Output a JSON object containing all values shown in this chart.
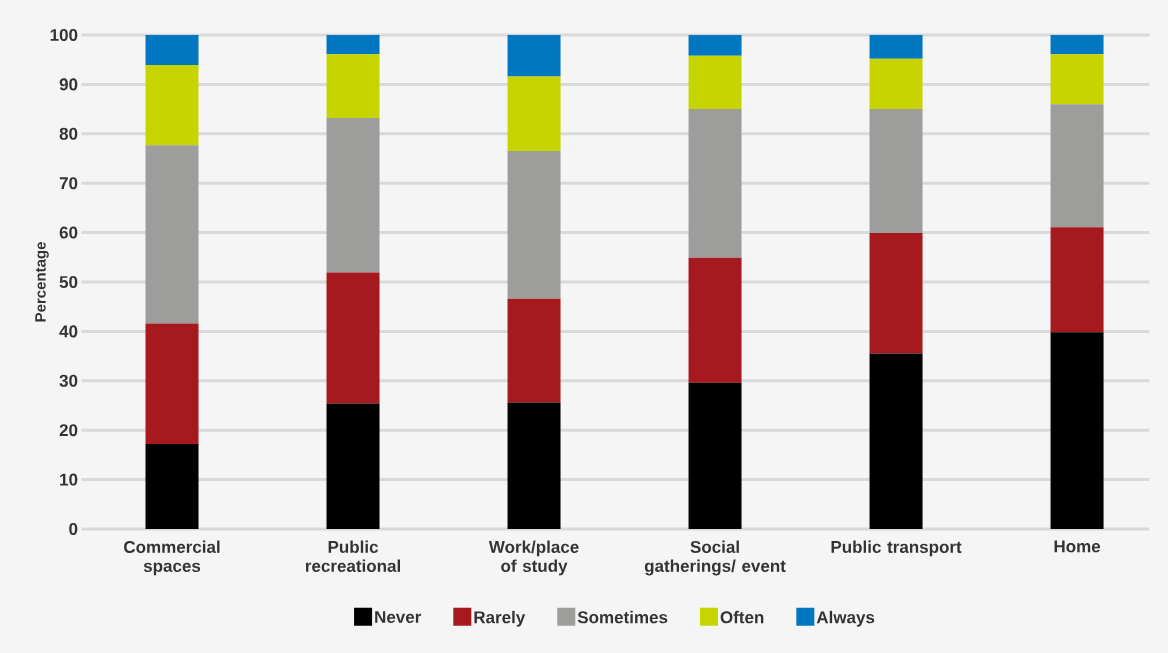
{
  "chart_data": {
    "type": "bar",
    "stacked": true,
    "ylabel": "Percentage",
    "categories": [
      "Commercial spaces",
      "Public recreational",
      "Work/place of study",
      "Social gatherings/ event",
      "Public transport",
      "Home"
    ],
    "series": [
      {
        "name": "Never",
        "color": "#000000",
        "values": [
          17.2,
          25.4,
          25.6,
          29.6,
          35.5,
          39.8
        ]
      },
      {
        "name": "Rarely",
        "color": "#a6191e",
        "values": [
          24.4,
          26.5,
          21.0,
          25.3,
          24.4,
          21.3
        ]
      },
      {
        "name": "Sometimes",
        "color": "#9d9d9c",
        "values": [
          36.1,
          31.3,
          29.9,
          30.1,
          25.1,
          24.9
        ]
      },
      {
        "name": "Often",
        "color": "#c8d400",
        "values": [
          16.2,
          12.9,
          15.1,
          10.8,
          10.2,
          10.1
        ]
      },
      {
        "name": "Always",
        "color": "#0077c0",
        "values": [
          6.1,
          3.9,
          8.4,
          4.2,
          4.8,
          3.9
        ]
      }
    ],
    "ylim": [
      0,
      100
    ],
    "yticks": [
      0,
      10,
      20,
      30,
      40,
      50,
      60,
      70,
      80,
      90,
      100
    ],
    "grid": "y",
    "legend": "bottom"
  }
}
